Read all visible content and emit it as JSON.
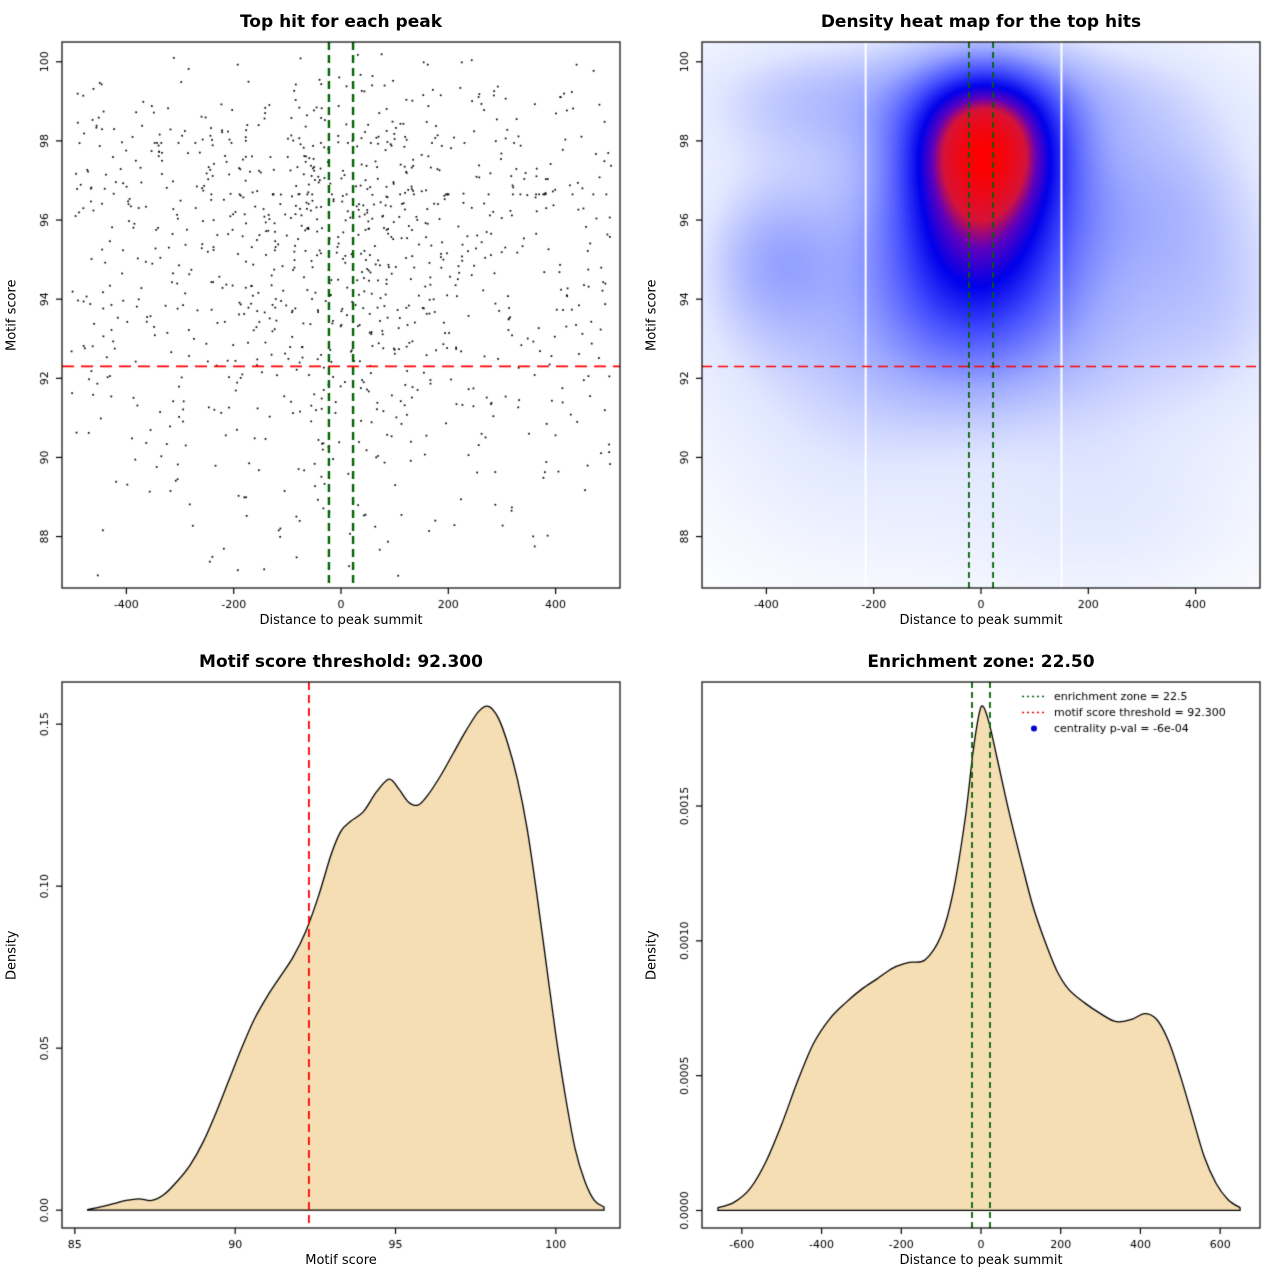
{
  "parameters": {
    "motif_score_threshold": "92.300",
    "enrichment_zone": "22.50",
    "centrality_p_value": "-6e-04"
  },
  "chart_data": [
    {
      "id": "top-hits-scatter",
      "type": "scatter",
      "title": "Top hit for each peak",
      "xlabel": "Distance to peak summit",
      "ylabel": "Motif score",
      "xlim": [
        -520,
        520
      ],
      "ylim": [
        86.7,
        100.5
      ],
      "xticks": [
        -400,
        -200,
        0,
        200,
        400
      ],
      "xtick_labels": [
        "-400",
        "-200",
        "0",
        "200",
        "400"
      ],
      "yticks": [
        88,
        90,
        92,
        94,
        96,
        98,
        100
      ],
      "ytick_labels": [
        "88",
        "90",
        "92",
        "94",
        "96",
        "98",
        "100"
      ],
      "point_color": "#000000",
      "generator": {
        "seed": 20240613,
        "n": 1050,
        "x_center_frac": 0.32,
        "x_center_mu": 5,
        "x_center_sd": 135,
        "x_range": [
          -505,
          505
        ],
        "y_components": [
          {
            "w": 0.4,
            "mu": 97.6,
            "sd": 1.3
          },
          {
            "w": 0.28,
            "mu": 94.7,
            "sd": 1.25
          },
          {
            "w": 0.17,
            "mu": 92.4,
            "sd": 1.4
          },
          {
            "w": 0.15,
            "mu": 90.2,
            "sd": 1.7
          }
        ],
        "y_clip": [
          87,
          100.2
        ],
        "streaks": [
          {
            "y": 96.65,
            "n": 26,
            "x_range": [
              -260,
              505
            ]
          },
          {
            "y": 97.95,
            "n": 12,
            "x_range": [
              -450,
              350
            ]
          }
        ]
      },
      "overlays": {
        "h_line": {
          "y": 92.3,
          "color": "#ff0000",
          "dash": [
            12,
            7
          ],
          "width": 1.8
        },
        "v_lines": {
          "x": [
            -22.5,
            22.5
          ],
          "color": "#006400",
          "dash": [
            8,
            5
          ],
          "width": 2.4
        }
      }
    },
    {
      "id": "top-hits-heatmap",
      "type": "heatmap",
      "title": "Density heat map for the top hits",
      "xlabel": "Distance to peak summit",
      "ylabel": "Motif score",
      "xlim": [
        -520,
        520
      ],
      "ylim": [
        86.7,
        100.5
      ],
      "xticks": [
        -400,
        -200,
        0,
        200,
        400
      ],
      "xtick_labels": [
        "-400",
        "-200",
        "0",
        "200",
        "400"
      ],
      "yticks": [
        88,
        90,
        92,
        94,
        96,
        98,
        100
      ],
      "ytick_labels": [
        "88",
        "90",
        "92",
        "94",
        "96",
        "98",
        "100"
      ],
      "gamma": 0.8,
      "colormap": [
        [
          0.0,
          255,
          255,
          255
        ],
        [
          0.18,
          225,
          231,
          255
        ],
        [
          0.35,
          158,
          170,
          255
        ],
        [
          0.52,
          72,
          82,
          255
        ],
        [
          0.66,
          0,
          0,
          235
        ],
        [
          0.76,
          95,
          0,
          190
        ],
        [
          0.84,
          215,
          20,
          55
        ],
        [
          1.0,
          255,
          0,
          0
        ]
      ],
      "density_components": [
        [
          1.15,
          10,
          98.0,
          95,
          1.25
        ],
        [
          0.72,
          0,
          96.6,
          110,
          1.9
        ],
        [
          0.55,
          -20,
          94.8,
          140,
          2.0
        ],
        [
          0.42,
          0,
          96.0,
          320,
          3.2
        ],
        [
          0.4,
          -390,
          95.0,
          90,
          1.4
        ],
        [
          0.3,
          345,
          96.5,
          140,
          1.8
        ],
        [
          0.26,
          60,
          99.3,
          260,
          1.0
        ],
        [
          0.25,
          -350,
          99.0,
          150,
          1.1
        ],
        [
          0.24,
          0,
          92.6,
          380,
          1.6
        ],
        [
          0.16,
          -270,
          90.0,
          170,
          1.9
        ],
        [
          0.13,
          280,
          89.4,
          170,
          1.8
        ],
        [
          0.15,
          460,
          93.8,
          110,
          1.7
        ],
        [
          0.12,
          150,
          88.3,
          220,
          1.4
        ]
      ],
      "overlays": {
        "white_lines_x": [
          -215,
          150
        ],
        "h_line": {
          "y": 92.3,
          "color": "#ff0000",
          "dash": [
            10,
            6
          ],
          "width": 1.6
        },
        "v_lines": {
          "x": [
            -22.5,
            22.5
          ],
          "color": "#006400",
          "dash": [
            6,
            4
          ],
          "width": 1.8
        }
      }
    },
    {
      "id": "motif-score-density",
      "type": "density",
      "title": "Motif score threshold: 92.300",
      "xlabel": "Motif score",
      "ylabel": "Density",
      "xlim": [
        84.6,
        102.0
      ],
      "ylim": [
        -0.0055,
        0.163
      ],
      "xticks": [
        85,
        90,
        95,
        100
      ],
      "xtick_labels": [
        "85",
        "90",
        "95",
        "100"
      ],
      "yticks": [
        0,
        0.05,
        0.1,
        0.15
      ],
      "ytick_labels": [
        "0.00",
        "0.05",
        "0.10",
        "0.15"
      ],
      "fill_color": "#f5deb3",
      "line_color": "#000000",
      "curve": [
        [
          85.4,
          0.0002
        ],
        [
          85.8,
          0.001
        ],
        [
          86.2,
          0.002
        ],
        [
          86.6,
          0.003
        ],
        [
          87.0,
          0.0035
        ],
        [
          87.4,
          0.003
        ],
        [
          87.8,
          0.005
        ],
        [
          88.2,
          0.009
        ],
        [
          88.6,
          0.014
        ],
        [
          89.0,
          0.021
        ],
        [
          89.4,
          0.03
        ],
        [
          89.8,
          0.04
        ],
        [
          90.2,
          0.05
        ],
        [
          90.6,
          0.059
        ],
        [
          91.0,
          0.066
        ],
        [
          91.4,
          0.072
        ],
        [
          91.8,
          0.078
        ],
        [
          92.2,
          0.086
        ],
        [
          92.6,
          0.097
        ],
        [
          93.0,
          0.11
        ],
        [
          93.3,
          0.117
        ],
        [
          93.6,
          0.12
        ],
        [
          94.0,
          0.123
        ],
        [
          94.4,
          0.129
        ],
        [
          94.8,
          0.133
        ],
        [
          95.1,
          0.13
        ],
        [
          95.4,
          0.126
        ],
        [
          95.7,
          0.125
        ],
        [
          96.0,
          0.128
        ],
        [
          96.4,
          0.134
        ],
        [
          96.8,
          0.141
        ],
        [
          97.2,
          0.148
        ],
        [
          97.6,
          0.154
        ],
        [
          97.9,
          0.1555
        ],
        [
          98.2,
          0.152
        ],
        [
          98.5,
          0.144
        ],
        [
          98.8,
          0.133
        ],
        [
          99.1,
          0.118
        ],
        [
          99.4,
          0.098
        ],
        [
          99.7,
          0.076
        ],
        [
          100.0,
          0.054
        ],
        [
          100.3,
          0.035
        ],
        [
          100.6,
          0.019
        ],
        [
          100.9,
          0.009
        ],
        [
          101.2,
          0.003
        ],
        [
          101.5,
          0.001
        ]
      ],
      "overlays": {
        "v_lines": {
          "x": [
            92.3
          ],
          "color": "#ff0000",
          "dash": [
            8,
            5
          ],
          "width": 1.8
        }
      }
    },
    {
      "id": "distance-density",
      "type": "density",
      "title": "Enrichment zone: 22.50",
      "xlabel": "Distance to peak summit",
      "ylabel": "Density",
      "xlim": [
        -700,
        700
      ],
      "ylim": [
        -6.5e-05,
        0.00196
      ],
      "xticks": [
        -600,
        -400,
        -200,
        0,
        200,
        400,
        600
      ],
      "xtick_labels": [
        "-600",
        "-400",
        "-200",
        "0",
        "200",
        "400",
        "600"
      ],
      "yticks": [
        0,
        0.0005,
        0.001,
        0.0015
      ],
      "ytick_labels": [
        "0.0000",
        "0.0005",
        "0.0010",
        "0.0015"
      ],
      "fill_color": "#f5deb3",
      "line_color": "#000000",
      "curve": [
        [
          -660,
          1e-05
        ],
        [
          -620,
          3e-05
        ],
        [
          -580,
          8e-05
        ],
        [
          -540,
          0.00018
        ],
        [
          -500,
          0.00032
        ],
        [
          -460,
          0.00048
        ],
        [
          -420,
          0.00062
        ],
        [
          -380,
          0.00071
        ],
        [
          -340,
          0.00077
        ],
        [
          -300,
          0.00082
        ],
        [
          -260,
          0.00086
        ],
        [
          -220,
          0.0009
        ],
        [
          -180,
          0.00092
        ],
        [
          -140,
          0.00093
        ],
        [
          -100,
          0.00102
        ],
        [
          -70,
          0.00118
        ],
        [
          -40,
          0.00145
        ],
        [
          -20,
          0.0017
        ],
        [
          -5,
          0.00184
        ],
        [
          5,
          0.00187
        ],
        [
          20,
          0.00181
        ],
        [
          40,
          0.00168
        ],
        [
          70,
          0.00148
        ],
        [
          100,
          0.0013
        ],
        [
          130,
          0.00113
        ],
        [
          160,
          0.001
        ],
        [
          190,
          0.00089
        ],
        [
          220,
          0.00082
        ],
        [
          260,
          0.00077
        ],
        [
          300,
          0.00073
        ],
        [
          340,
          0.0007
        ],
        [
          380,
          0.00071
        ],
        [
          410,
          0.00073
        ],
        [
          440,
          0.00071
        ],
        [
          470,
          0.00063
        ],
        [
          500,
          0.0005
        ],
        [
          530,
          0.00035
        ],
        [
          560,
          0.0002
        ],
        [
          590,
          0.0001
        ],
        [
          620,
          4e-05
        ],
        [
          650,
          1e-05
        ]
      ],
      "overlays": {
        "v_lines": {
          "x": [
            -22.5,
            22.5
          ],
          "color": "#006400",
          "dash": [
            6,
            4
          ],
          "width": 1.8
        }
      },
      "legend": {
        "x_offset": 238,
        "entries": [
          {
            "marker": "dotted-line",
            "color": "#006400",
            "label": "enrichment zone = 22.5"
          },
          {
            "marker": "dotted-line",
            "color": "#ff0000",
            "label": "motif score threshold = 92.300"
          },
          {
            "marker": "point",
            "color": "#0000cd",
            "label": "centrality p-val = -6e-04"
          }
        ]
      }
    }
  ]
}
